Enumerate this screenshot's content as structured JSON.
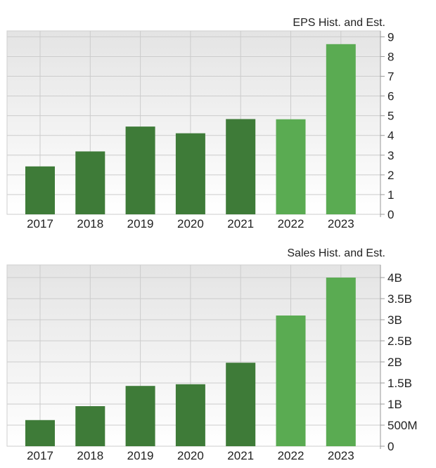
{
  "colors": {
    "historical": "#3e7b38",
    "estimate": "#5aab52",
    "grid": "#cccccc"
  },
  "chart_data": [
    {
      "type": "bar",
      "title": "EPS Hist. and Est.",
      "categories": [
        "2017",
        "2018",
        "2019",
        "2020",
        "2021",
        "2022",
        "2023"
      ],
      "values": [
        2.43,
        3.19,
        4.45,
        4.11,
        4.83,
        4.82,
        8.63
      ],
      "estimate": [
        false,
        false,
        false,
        false,
        false,
        true,
        true
      ],
      "ylim": [
        0,
        9.3
      ],
      "yticks": [
        0,
        1,
        2,
        3,
        4,
        5,
        6,
        7,
        8,
        9
      ],
      "ytick_labels": [
        "0",
        "1",
        "2",
        "3",
        "4",
        "5",
        "6",
        "7",
        "8",
        "9"
      ],
      "y_axis_position": "right",
      "grid": true
    },
    {
      "type": "bar",
      "title": "Sales Hist. and Est.",
      "categories": [
        "2017",
        "2018",
        "2019",
        "2020",
        "2021",
        "2022",
        "2023"
      ],
      "values": [
        620000000,
        950000000,
        1430000000,
        1470000000,
        1980000000,
        3100000000,
        4000000000
      ],
      "estimate": [
        false,
        false,
        false,
        false,
        false,
        true,
        true
      ],
      "ylim": [
        0,
        4300000000
      ],
      "yticks": [
        0,
        500000000,
        1000000000,
        1500000000,
        2000000000,
        2500000000,
        3000000000,
        3500000000,
        4000000000
      ],
      "ytick_labels": [
        "0",
        "500M",
        "1B",
        "1.5B",
        "2B",
        "2.5B",
        "3B",
        "3.5B",
        "4B"
      ],
      "y_axis_position": "right",
      "grid": true
    }
  ]
}
